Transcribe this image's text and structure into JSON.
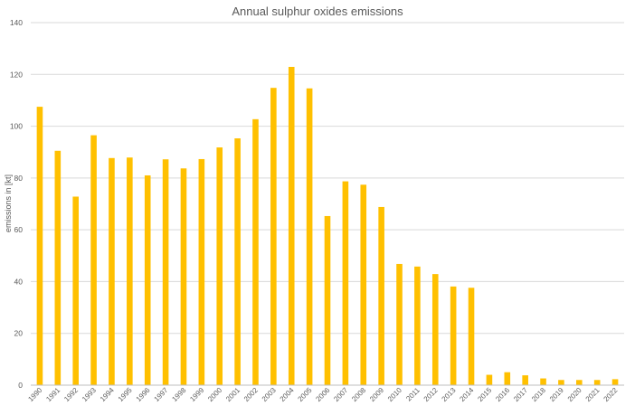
{
  "chart_data": {
    "type": "bar",
    "title": "Annual sulphur oxides emissions",
    "xlabel": "",
    "ylabel": "emissions in [kt]",
    "ylim": [
      0,
      140
    ],
    "yticks": [
      0,
      20,
      40,
      60,
      80,
      100,
      120,
      140
    ],
    "grid": true,
    "legend": "none",
    "bar_color": "#FFC000",
    "categories": [
      "1990",
      "1991",
      "1992",
      "1993",
      "1994",
      "1995",
      "1996",
      "1997",
      "1998",
      "1999",
      "2000",
      "2001",
      "2002",
      "2003",
      "2004",
      "2005",
      "2006",
      "2007",
      "2008",
      "2009",
      "2010",
      "2011",
      "2012",
      "2013",
      "2014",
      "2015",
      "2016",
      "2017",
      "2018",
      "2019",
      "2020",
      "2021",
      "2022"
    ],
    "values": [
      107.5,
      90.5,
      72.8,
      96.5,
      87.7,
      87.9,
      81.0,
      87.2,
      83.7,
      87.3,
      91.8,
      95.3,
      102.7,
      114.8,
      122.9,
      114.6,
      65.3,
      78.7,
      77.4,
      68.8,
      46.8,
      45.8,
      42.9,
      38.1,
      37.6,
      4.0,
      5.0,
      3.8,
      2.6,
      2.0,
      2.0,
      2.0,
      2.3
    ]
  }
}
